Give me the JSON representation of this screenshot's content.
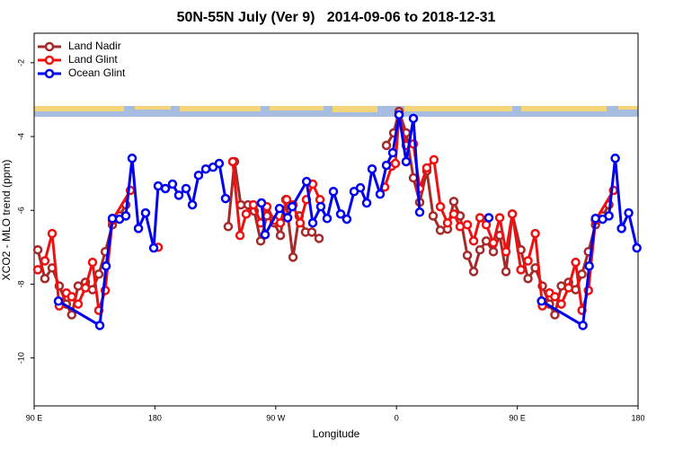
{
  "chart_data": {
    "type": "line",
    "title": "50N-55N July (Ver 9)   2014-09-06 to 2018-12-31",
    "x_label": "Longitude",
    "y_label": "XCO2 - MLO trend (ppm)",
    "xlim": [
      90,
      540
    ],
    "xticks": [
      {
        "value": 90,
        "label": "90 E"
      },
      {
        "value": 180,
        "label": "180"
      },
      {
        "value": 270,
        "label": "90 W"
      },
      {
        "value": 360,
        "label": "0"
      },
      {
        "value": 450,
        "label": "90 E"
      },
      {
        "value": 540,
        "label": "180"
      }
    ],
    "ylim": [
      -11.3,
      -1.2
    ],
    "yticks": [
      -2,
      -4,
      -6,
      -8,
      -10
    ],
    "legend": "top-left",
    "series": [
      {
        "name": "Land Nadir",
        "color": "#a52a2a",
        "x": [
          92.7,
          98,
          103.4,
          108.7,
          114,
          118,
          122.8,
          128.2,
          133.5,
          138.2,
          143,
          148.3,
          153.6,
          158.3,
          null,
          234.6,
          239.3,
          244,
          249.4,
          254,
          258.8,
          263.4,
          268.8,
          273.5,
          277.5,
          282.9,
          287.5,
          292.2,
          296.9,
          302.3,
          null,
          352.5,
          357.9,
          361.9,
          367.2,
          372.6,
          377.3,
          382.6,
          387.3,
          392.7,
          398,
          402.7,
          407.4,
          412.8,
          417.5,
          422.2,
          426.9,
          432.2,
          436.9,
          441.6,
          446.3,
          452.7,
          458,
          463.4,
          468.7,
          474,
          478,
          482.8,
          488.2,
          493.5,
          498.2,
          503,
          508.3,
          513.6,
          518.3
        ],
        "values": [
          -7.07,
          -7.85,
          -7.56,
          -8.05,
          -8.54,
          -8.83,
          -8.05,
          -7.95,
          -8.15,
          -7.73,
          -7.12,
          -6.39,
          -6.15,
          -5.85,
          null,
          -6.44,
          -4.68,
          -5.85,
          -5.85,
          -6.02,
          -6.83,
          -6.15,
          -6.34,
          -6.68,
          -5.71,
          -7.27,
          -6.15,
          -6.59,
          -6.59,
          -6.76,
          null,
          -4.24,
          -3.9,
          -3.32,
          -3.9,
          -5.12,
          -5.78,
          -4.93,
          -6.15,
          -6.54,
          -6.51,
          -5.76,
          -6.15,
          -7.22,
          -7.66,
          -7.07,
          -6.83,
          -7.12,
          -6.68,
          -7.66,
          -6.1,
          -7.07,
          -7.85,
          -7.56,
          -8.05,
          -8.54,
          -8.83,
          -8.05,
          -7.95,
          -8.15,
          -7.73,
          -7.12,
          -6.39,
          -6.15,
          -5.85
        ]
      },
      {
        "name": "Land Glint",
        "color": "#ee1111",
        "x": [
          92.7,
          98,
          103.4,
          108.7,
          114,
          118,
          122.8,
          128.2,
          133.5,
          138.2,
          143,
          148.3,
          161.7,
          null,
          182.4,
          null,
          238,
          243.4,
          248,
          253.4,
          258.8,
          263.4,
          268.8,
          273.5,
          278.2,
          282.9,
          288.2,
          292.9,
          297.6,
          303,
          null,
          351.2,
          356.5,
          359.2,
          361.9,
          367.2,
          372.6,
          377.3,
          382.6,
          387.9,
          392.7,
          398,
          402.7,
          407.4,
          412.8,
          417.5,
          422.2,
          426.9,
          432.2,
          436.9,
          441.6,
          446.3,
          452.7,
          458,
          463.4,
          468.7,
          474,
          478,
          482.8,
          488.2,
          493.5,
          498.2,
          503,
          508.3,
          521.7
        ],
        "values": [
          -7.61,
          -7.37,
          -6.63,
          -8.59,
          -8.24,
          -8.34,
          -8.54,
          -8.1,
          -7.41,
          -8.71,
          -8.17,
          -6.27,
          -5.46,
          null,
          -7.0,
          null,
          -4.68,
          -6.68,
          -6.1,
          -5.85,
          -6.34,
          -5.9,
          -6.27,
          -6.34,
          -5.71,
          -5.85,
          -6.34,
          -5.71,
          -5.29,
          -5.71,
          null,
          -5.37,
          -4.8,
          -4.73,
          -3.41,
          -4.24,
          -4.2,
          -5.41,
          -4.85,
          -4.63,
          -5.9,
          -6.34,
          -6.1,
          -6.44,
          -6.39,
          -6.83,
          -6.2,
          -6.39,
          -6.88,
          -6.2,
          -7.12,
          -6.1,
          -7.61,
          -7.37,
          -6.63,
          -8.59,
          -8.24,
          -8.34,
          -8.54,
          -8.1,
          -7.41,
          -8.71,
          -8.17,
          -6.27,
          -5.46
        ]
      },
      {
        "name": "Ocean Glint",
        "color": "#0000ee",
        "x": [
          108.1,
          138.9,
          143.6,
          148.3,
          153.6,
          158.3,
          163,
          167.7,
          173,
          179.1,
          182.4,
          187.8,
          193.1,
          197.8,
          203.2,
          207.9,
          212.5,
          217.9,
          223.3,
          227.9,
          232.6,
          null,
          259.4,
          262.1,
          272.8,
          278.9,
          282.3,
          293,
          297.6,
          303.6,
          308.3,
          313,
          318.4,
          323,
          328.4,
          333.1,
          337.8,
          341.8,
          347.8,
          352.5,
          357.2,
          361.9,
          367.2,
          372.6,
          377.3,
          null,
          428.8,
          null,
          468.1,
          498.9,
          503.6,
          508.3,
          513.6,
          518.3,
          523,
          527.7,
          533,
          539.1
        ],
        "values": [
          -8.46,
          -9.12,
          -7.51,
          -6.22,
          -6.24,
          -6.15,
          -4.59,
          -6.49,
          -6.07,
          -7.02,
          -5.34,
          -5.41,
          -5.29,
          -5.59,
          -5.41,
          -5.85,
          -5.05,
          -4.88,
          -4.83,
          -4.73,
          -5.68,
          null,
          -5.8,
          -6.66,
          -5.95,
          -6.2,
          -5.9,
          -5.22,
          -6.34,
          -5.9,
          -6.22,
          -5.49,
          -6.1,
          -6.24,
          -5.49,
          -5.39,
          -5.8,
          -4.88,
          -5.56,
          -4.78,
          -4.44,
          -3.41,
          -4.68,
          -3.51,
          -6.05,
          null,
          -6.2,
          null,
          -8.46,
          -9.12,
          -7.51,
          -6.22,
          -6.24,
          -6.15,
          -4.59,
          -6.49,
          -6.07,
          -7.02
        ]
      }
    ]
  }
}
